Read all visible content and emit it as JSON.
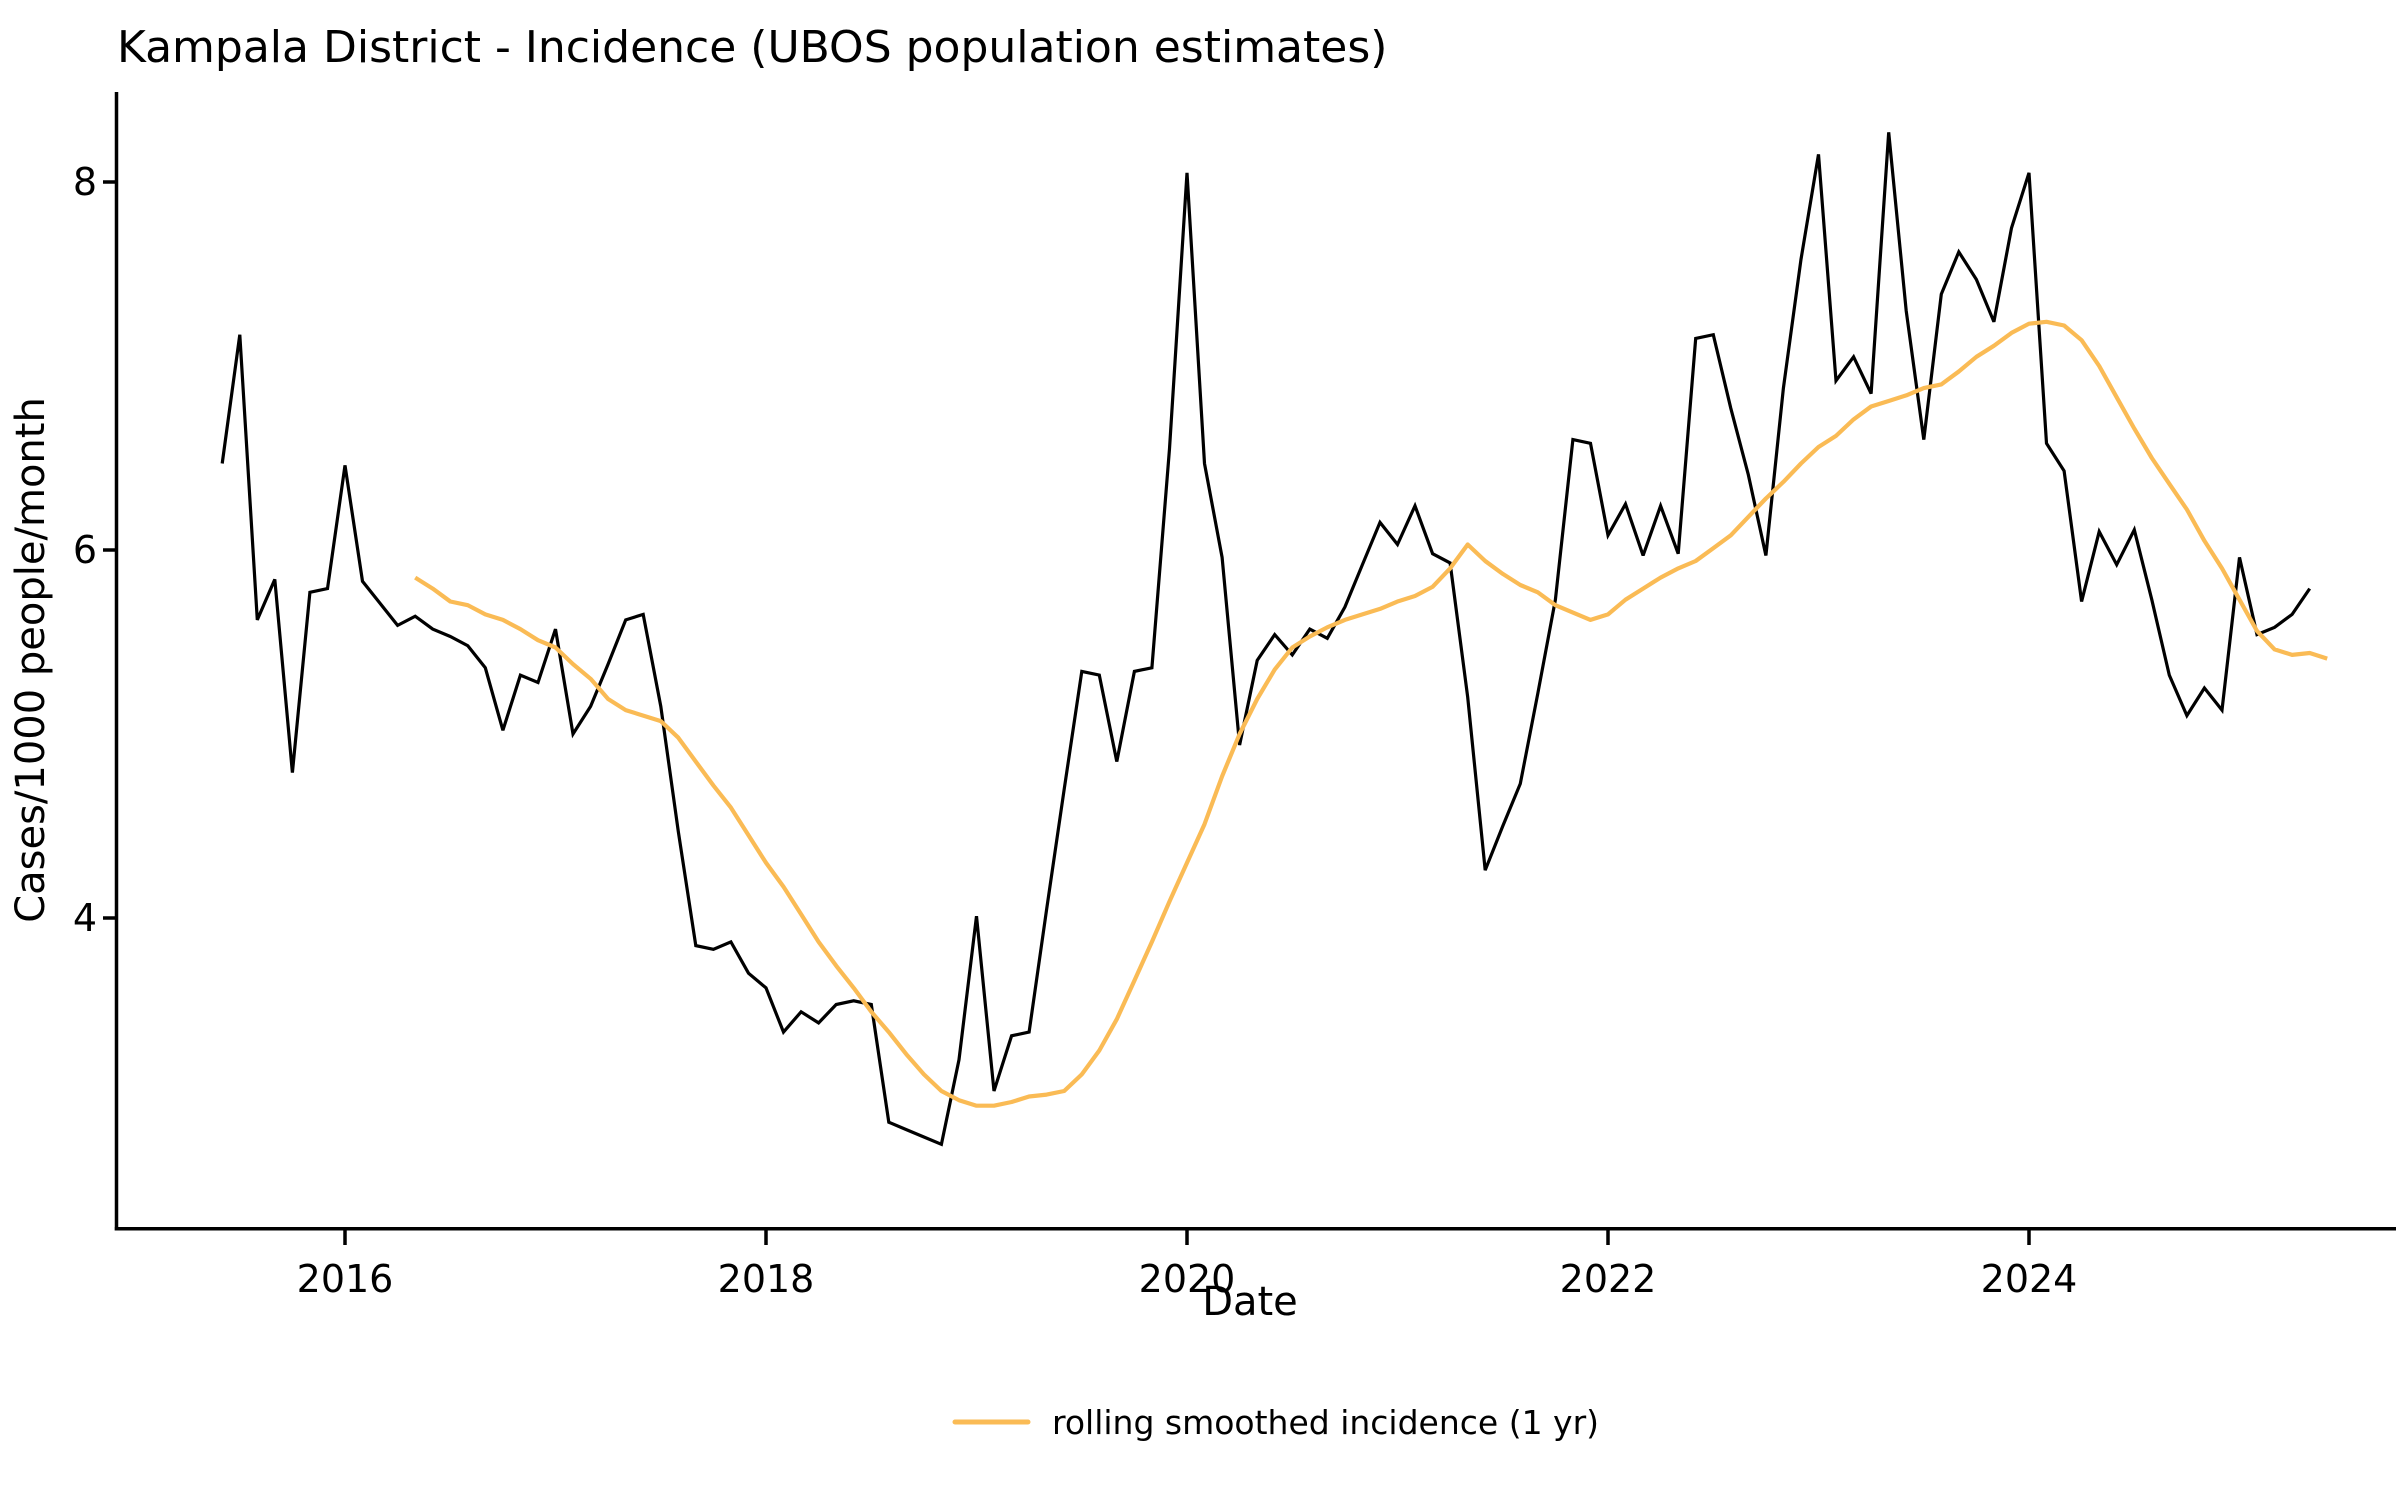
{
  "title": "Kampala District - Incidence (UBOS population estimates)",
  "axes": {
    "x_label": "Date",
    "y_label": "Cases/1000 people/month",
    "y_ticks": [
      8,
      6,
      4
    ],
    "x_ticks": [
      2016,
      2018,
      2020,
      2022,
      2024
    ]
  },
  "legend": {
    "smoothed_label": "rolling smoothed incidence (1 yr)"
  },
  "colors": {
    "incidence_line": "#000000",
    "smoothed_line": "#FABB55",
    "background": "#ffffff",
    "axis": "#000000"
  },
  "chart_data": {
    "type": "line",
    "title": "Kampala District - Incidence (UBOS population estimates)",
    "xlabel": "Date",
    "ylabel": "Cases/1000 people/month",
    "x_tick_years": [
      2016,
      2018,
      2020,
      2022,
      2024
    ],
    "y_tick_values": [
      8,
      6,
      4
    ],
    "ylim": [
      2.3,
      8.5
    ],
    "xlim_years": [
      2014.93,
      2025.72
    ],
    "grid": false,
    "legend_position": "bottom-center",
    "series": [
      {
        "name": "monthly incidence",
        "color": "#000000",
        "width": 3.2,
        "start": "2015-06",
        "values": [
          6.47,
          7.17,
          5.62,
          5.84,
          4.79,
          5.77,
          5.79,
          6.46,
          5.83,
          5.71,
          5.59,
          5.64,
          5.57,
          5.53,
          5.48,
          5.36,
          5.02,
          5.32,
          5.28,
          5.57,
          5.0,
          5.15,
          5.38,
          5.62,
          5.65,
          5.15,
          4.47,
          3.85,
          3.83,
          3.87,
          3.7,
          3.62,
          3.38,
          3.49,
          3.43,
          3.53,
          3.55,
          3.53,
          2.89,
          2.85,
          2.81,
          2.77,
          3.23,
          4.01,
          3.06,
          3.36,
          3.38,
          4.05,
          4.7,
          5.34,
          5.32,
          4.85,
          5.34,
          5.36,
          6.55,
          8.05,
          6.47,
          5.96,
          4.94,
          5.4,
          5.54,
          5.43,
          5.57,
          5.52,
          5.69,
          5.92,
          6.15,
          6.03,
          6.24,
          5.98,
          5.93,
          5.2,
          4.26,
          4.5,
          4.73,
          5.22,
          5.73,
          6.6,
          6.58,
          6.08,
          6.25,
          5.97,
          6.24,
          5.98,
          7.15,
          7.17,
          6.77,
          6.41,
          5.97,
          6.88,
          7.58,
          8.15,
          6.92,
          7.05,
          6.85,
          8.27,
          7.3,
          6.6,
          7.39,
          7.62,
          7.47,
          7.24,
          7.75,
          8.05,
          6.58,
          6.43,
          5.72,
          6.1,
          5.92,
          6.11,
          5.73,
          5.32,
          5.1,
          5.25,
          5.13,
          5.96,
          5.54,
          5.58,
          5.65,
          5.79
        ]
      },
      {
        "name": "rolling smoothed incidence (1 yr)",
        "color": "#FABB55",
        "width": 4.2,
        "start": "2016-05",
        "values": [
          5.85,
          5.79,
          5.72,
          5.7,
          5.65,
          5.62,
          5.57,
          5.51,
          5.47,
          5.38,
          5.3,
          5.19,
          5.13,
          5.1,
          5.07,
          4.98,
          4.85,
          4.72,
          4.6,
          4.45,
          4.3,
          4.17,
          4.02,
          3.87,
          3.74,
          3.62,
          3.49,
          3.38,
          3.26,
          3.15,
          3.06,
          3.01,
          2.98,
          2.98,
          3.0,
          3.03,
          3.04,
          3.06,
          3.15,
          3.28,
          3.45,
          3.66,
          3.87,
          4.09,
          4.3,
          4.51,
          4.77,
          5.0,
          5.19,
          5.35,
          5.47,
          5.53,
          5.58,
          5.62,
          5.65,
          5.68,
          5.72,
          5.75,
          5.8,
          5.9,
          6.03,
          5.94,
          5.87,
          5.81,
          5.77,
          5.7,
          5.66,
          5.62,
          5.65,
          5.73,
          5.79,
          5.85,
          5.9,
          5.94,
          6.01,
          6.08,
          6.18,
          6.28,
          6.37,
          6.47,
          6.56,
          6.62,
          6.71,
          6.78,
          6.81,
          6.84,
          6.88,
          6.9,
          6.97,
          7.05,
          7.11,
          7.18,
          7.23,
          7.24,
          7.22,
          7.14,
          7.0,
          6.83,
          6.66,
          6.5,
          6.36,
          6.22,
          6.05,
          5.9,
          5.73,
          5.56,
          5.46,
          5.43,
          5.44,
          5.41
        ]
      }
    ]
  }
}
